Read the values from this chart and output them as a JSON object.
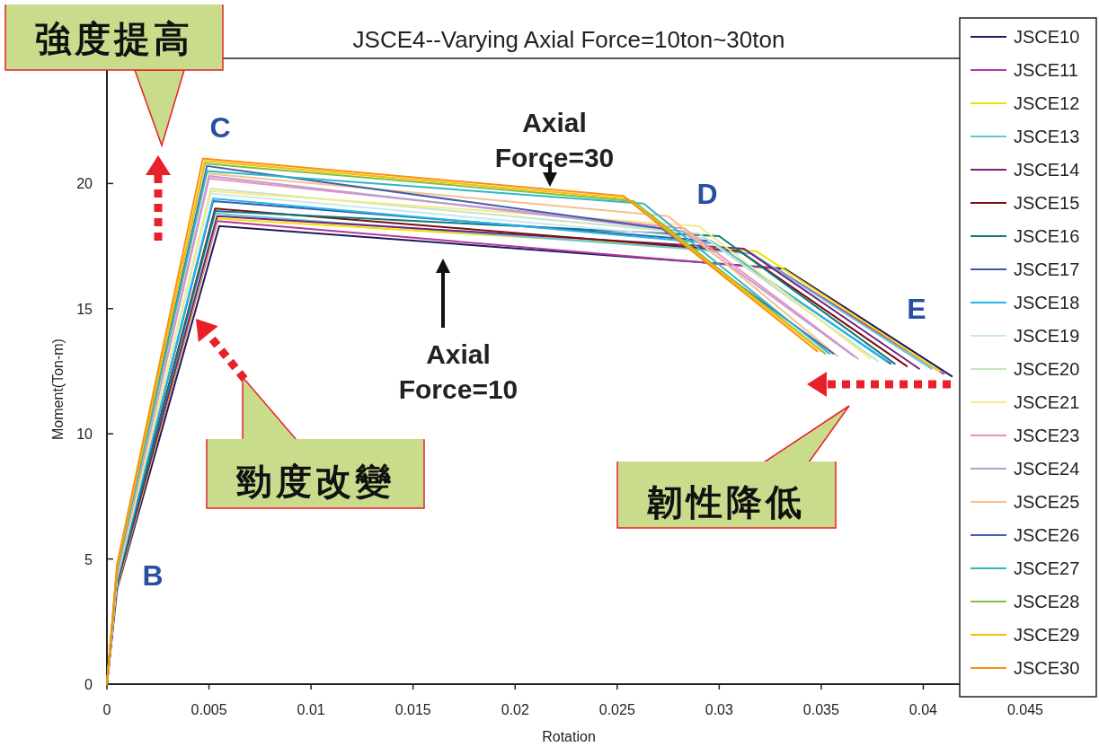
{
  "chart_data": {
    "type": "line",
    "title": "JSCE4--Varying Axial Force=10ton~30ton",
    "xlabel": "Rotation",
    "ylabel": "Moment(Ton-m)",
    "xlim": [
      0,
      0.045
    ],
    "ylim": [
      0,
      25
    ],
    "xticks": [
      0,
      0.005,
      0.01,
      0.015,
      0.02,
      0.025,
      0.03,
      0.035,
      0.04,
      0.045
    ],
    "yticks": [
      0,
      5,
      10,
      15,
      20
    ],
    "legend": "right",
    "marker": "none",
    "line_style": "solid",
    "annotations": [
      "強度提高",
      "勁度改變",
      "韌性降低",
      "B",
      "C",
      "D",
      "E",
      "Axial Force=30",
      "Axial Force=10"
    ],
    "series": [
      {
        "name": "JSCE10",
        "color": "#1f1a5e",
        "x": [
          0,
          0.0005,
          0.0055,
          0.0332,
          0.0414
        ],
        "values": [
          0,
          3.8,
          18.3,
          16.6,
          12.3
        ]
      },
      {
        "name": "JSCE11",
        "color": "#b03aa0",
        "x": [
          0,
          0.0005,
          0.0054,
          0.0328,
          0.041
        ],
        "values": [
          0,
          3.9,
          18.5,
          16.6,
          12.4
        ]
      },
      {
        "name": "JSCE12",
        "color": "#f0e000",
        "x": [
          0,
          0.0005,
          0.0054,
          0.0318,
          0.0408
        ],
        "values": [
          0,
          3.9,
          18.6,
          17.3,
          12.5
        ]
      },
      {
        "name": "JSCE13",
        "color": "#5fc8d8",
        "x": [
          0,
          0.0005,
          0.0053,
          0.0316,
          0.0404
        ],
        "values": [
          0,
          4.0,
          18.8,
          17.2,
          12.6
        ]
      },
      {
        "name": "JSCE14",
        "color": "#7a1f7a",
        "x": [
          0,
          0.0005,
          0.0054,
          0.0312,
          0.0398
        ],
        "values": [
          0,
          4.0,
          18.7,
          17.4,
          12.6
        ]
      },
      {
        "name": "JSCE15",
        "color": "#7a0e12",
        "x": [
          0,
          0.0005,
          0.0053,
          0.031,
          0.0392
        ],
        "values": [
          0,
          4.1,
          19.0,
          17.3,
          12.7
        ]
      },
      {
        "name": "JSCE16",
        "color": "#0e7a7a",
        "x": [
          0,
          0.0005,
          0.0053,
          0.03,
          0.0386
        ],
        "values": [
          0,
          4.1,
          18.9,
          17.9,
          12.8
        ]
      },
      {
        "name": "JSCE17",
        "color": "#3a5aa8",
        "x": [
          0,
          0.0005,
          0.0052,
          0.0296,
          0.0384
        ],
        "values": [
          0,
          4.2,
          19.3,
          17.7,
          12.8
        ]
      },
      {
        "name": "JSCE18",
        "color": "#20b8e8",
        "x": [
          0,
          0.0005,
          0.0052,
          0.0298,
          0.0382
        ],
        "values": [
          0,
          4.2,
          19.4,
          17.6,
          12.9
        ]
      },
      {
        "name": "JSCE19",
        "color": "#c8e8f0",
        "x": [
          0,
          0.0005,
          0.0051,
          0.0294,
          0.0378
        ],
        "values": [
          0,
          4.3,
          19.6,
          17.8,
          12.9
        ]
      },
      {
        "name": "JSCE20",
        "color": "#c8e4c0",
        "x": [
          0,
          0.0005,
          0.0051,
          0.029,
          0.0376
        ],
        "values": [
          0,
          4.3,
          19.8,
          18.0,
          13.0
        ]
      },
      {
        "name": "JSCE21",
        "color": "#f4ec88",
        "x": [
          0,
          0.0005,
          0.0051,
          0.029,
          0.0374
        ],
        "values": [
          0,
          4.4,
          19.7,
          18.3,
          13.0
        ]
      },
      {
        "name": "JSCE23",
        "color": "#f090c0",
        "x": [
          0,
          0.0005,
          0.005,
          0.0283,
          0.0368
        ],
        "values": [
          0,
          4.4,
          20.2,
          18.2,
          13.0
        ]
      },
      {
        "name": "JSCE24",
        "color": "#b8a0d0",
        "x": [
          0,
          0.0005,
          0.005,
          0.0282,
          0.0366
        ],
        "values": [
          0,
          4.5,
          20.3,
          18.1,
          13.1
        ]
      },
      {
        "name": "JSCE25",
        "color": "#f8c090",
        "x": [
          0,
          0.0005,
          0.0049,
          0.0275,
          0.0358
        ],
        "values": [
          0,
          4.5,
          20.4,
          18.7,
          13.1
        ]
      },
      {
        "name": "JSCE26",
        "color": "#4060b0",
        "x": [
          0,
          0.0005,
          0.0049,
          0.0272,
          0.0356
        ],
        "values": [
          0,
          4.6,
          20.7,
          18.2,
          13.2
        ]
      },
      {
        "name": "JSCE27",
        "color": "#30b8c0",
        "x": [
          0,
          0.0005,
          0.0049,
          0.0263,
          0.0354
        ],
        "values": [
          0,
          4.6,
          20.5,
          19.2,
          13.2
        ]
      },
      {
        "name": "JSCE28",
        "color": "#80c040",
        "x": [
          0,
          0.0005,
          0.0048,
          0.0258,
          0.0352
        ],
        "values": [
          0,
          4.7,
          20.8,
          19.3,
          13.2
        ]
      },
      {
        "name": "JSCE29",
        "color": "#f8c000",
        "x": [
          0,
          0.0005,
          0.0048,
          0.0255,
          0.035
        ],
        "values": [
          0,
          4.7,
          20.9,
          19.4,
          13.3
        ]
      },
      {
        "name": "JSCE30",
        "color": "#f89010",
        "x": [
          0,
          0.0005,
          0.0047,
          0.0253,
          0.0348
        ],
        "values": [
          0,
          4.8,
          21.0,
          19.5,
          13.3
        ]
      }
    ]
  }
}
